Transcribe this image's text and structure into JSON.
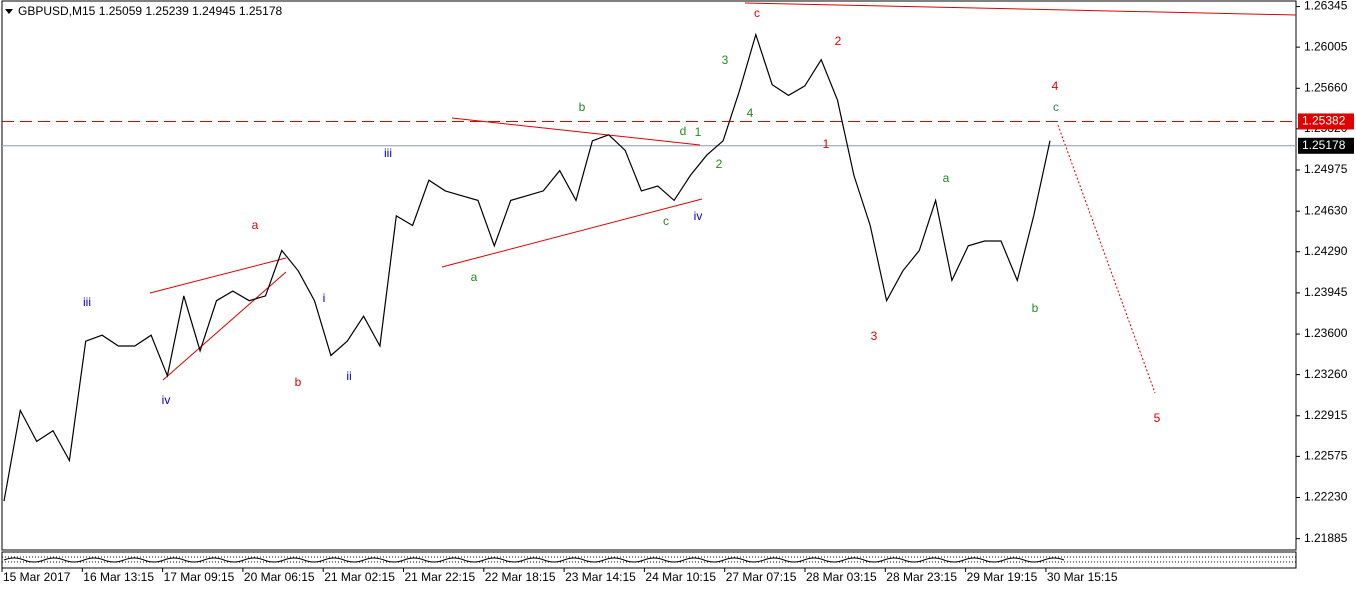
{
  "chart_data": {
    "type": "line",
    "title": "GBPUSD,M15  1.25059 1.25239 1.24945 1.25178",
    "x_labels": [
      "15 Mar 2017",
      "16 Mar 13:15",
      "17 Mar 09:15",
      "20 Mar 06:15",
      "21 Mar 02:15",
      "21 Mar 22:15",
      "22 Mar 18:15",
      "23 Mar 14:15",
      "24 Mar 10:15",
      "27 Mar 07:15",
      "28 Mar 03:15",
      "28 Mar 23:15",
      "29 Mar 19:15",
      "30 Mar 15:15"
    ],
    "series": [
      {
        "name": "GBPUSD",
        "color": "#000000",
        "values": [
          1.222,
          1.2296,
          1.227,
          1.2279,
          1.2254,
          1.2354,
          1.2359,
          1.235,
          1.235,
          1.2359,
          1.2325,
          1.2392,
          1.2346,
          1.2388,
          1.2396,
          1.2388,
          1.2392,
          1.243,
          1.2413,
          1.2388,
          1.2342,
          1.2354,
          1.2375,
          1.235,
          1.2459,
          1.2451,
          1.2489,
          1.248,
          1.2476,
          1.2472,
          1.2434,
          1.2472,
          1.2476,
          1.248,
          1.2497,
          1.2472,
          1.2522,
          1.2527,
          1.2514,
          1.248,
          1.2484,
          1.2472,
          1.2493,
          1.251,
          1.2522,
          1.2564,
          1.2611,
          1.2569,
          1.256,
          1.2568,
          1.259,
          1.2556,
          1.2493,
          1.2451,
          1.2388,
          1.2413,
          1.243,
          1.2472,
          1.2405,
          1.2434,
          1.2438,
          1.2438,
          1.2405,
          1.2459,
          1.2522
        ]
      }
    ],
    "ylim": [
      1.2179,
      1.264
    ],
    "yticks": [
      1.26345,
      1.26005,
      {
        "value": 1.2566,
        "label": "1.25660"
      },
      {
        "value": 1.2532,
        "label": "1.25320"
      },
      1.24975,
      {
        "value": 1.2463,
        "label": "1.24630"
      },
      {
        "value": 1.2429,
        "label": "1.24290"
      },
      1.23945,
      {
        "value": 1.236,
        "label": "1.23600"
      },
      {
        "value": 1.2326,
        "label": "1.23260"
      },
      1.22915,
      1.22575,
      {
        "value": 1.2223,
        "label": "1.22230"
      },
      1.21885
    ],
    "levels": [
      {
        "value": 1.25382,
        "color": "#e00000",
        "style": "dashed"
      },
      {
        "value": 1.25178,
        "color": "#8c9bab",
        "style": "solid"
      }
    ],
    "annotations": [
      {
        "text": "c",
        "color": "#e00000"
      },
      {
        "text": "2",
        "color": "#e00000"
      },
      {
        "text": "4",
        "color": "#e00000"
      },
      {
        "text": "1",
        "color": "#e00000"
      },
      {
        "text": "3",
        "color": "#e00000"
      },
      {
        "text": "5",
        "color": "#e00000"
      },
      {
        "text": "a",
        "color": "#e00000"
      },
      {
        "text": "b",
        "color": "#e00000"
      },
      {
        "text": "3",
        "color": "#228b22"
      },
      {
        "text": "4",
        "color": "#228b22"
      },
      {
        "text": "1",
        "color": "#228b22"
      },
      {
        "text": "d",
        "color": "#228b22"
      },
      {
        "text": "2",
        "color": "#228b22"
      },
      {
        "text": "b",
        "color": "#228b22"
      },
      {
        "text": "a",
        "color": "#228b22"
      },
      {
        "text": "c",
        "color": "#228b22"
      },
      {
        "text": "a",
        "color": "#228b22"
      },
      {
        "text": "b",
        "color": "#228b22"
      },
      {
        "text": "c",
        "color": "#2e8b57"
      },
      {
        "text": "iii",
        "color": "#0000cc"
      },
      {
        "text": "iv",
        "color": "#0000cc"
      },
      {
        "text": "i",
        "color": "#0000cc"
      },
      {
        "text": "ii",
        "color": "#0000cc"
      },
      {
        "text": "iii",
        "color": "#0000cc"
      },
      {
        "text": "iv",
        "color": "#0000cc"
      }
    ]
  }
}
